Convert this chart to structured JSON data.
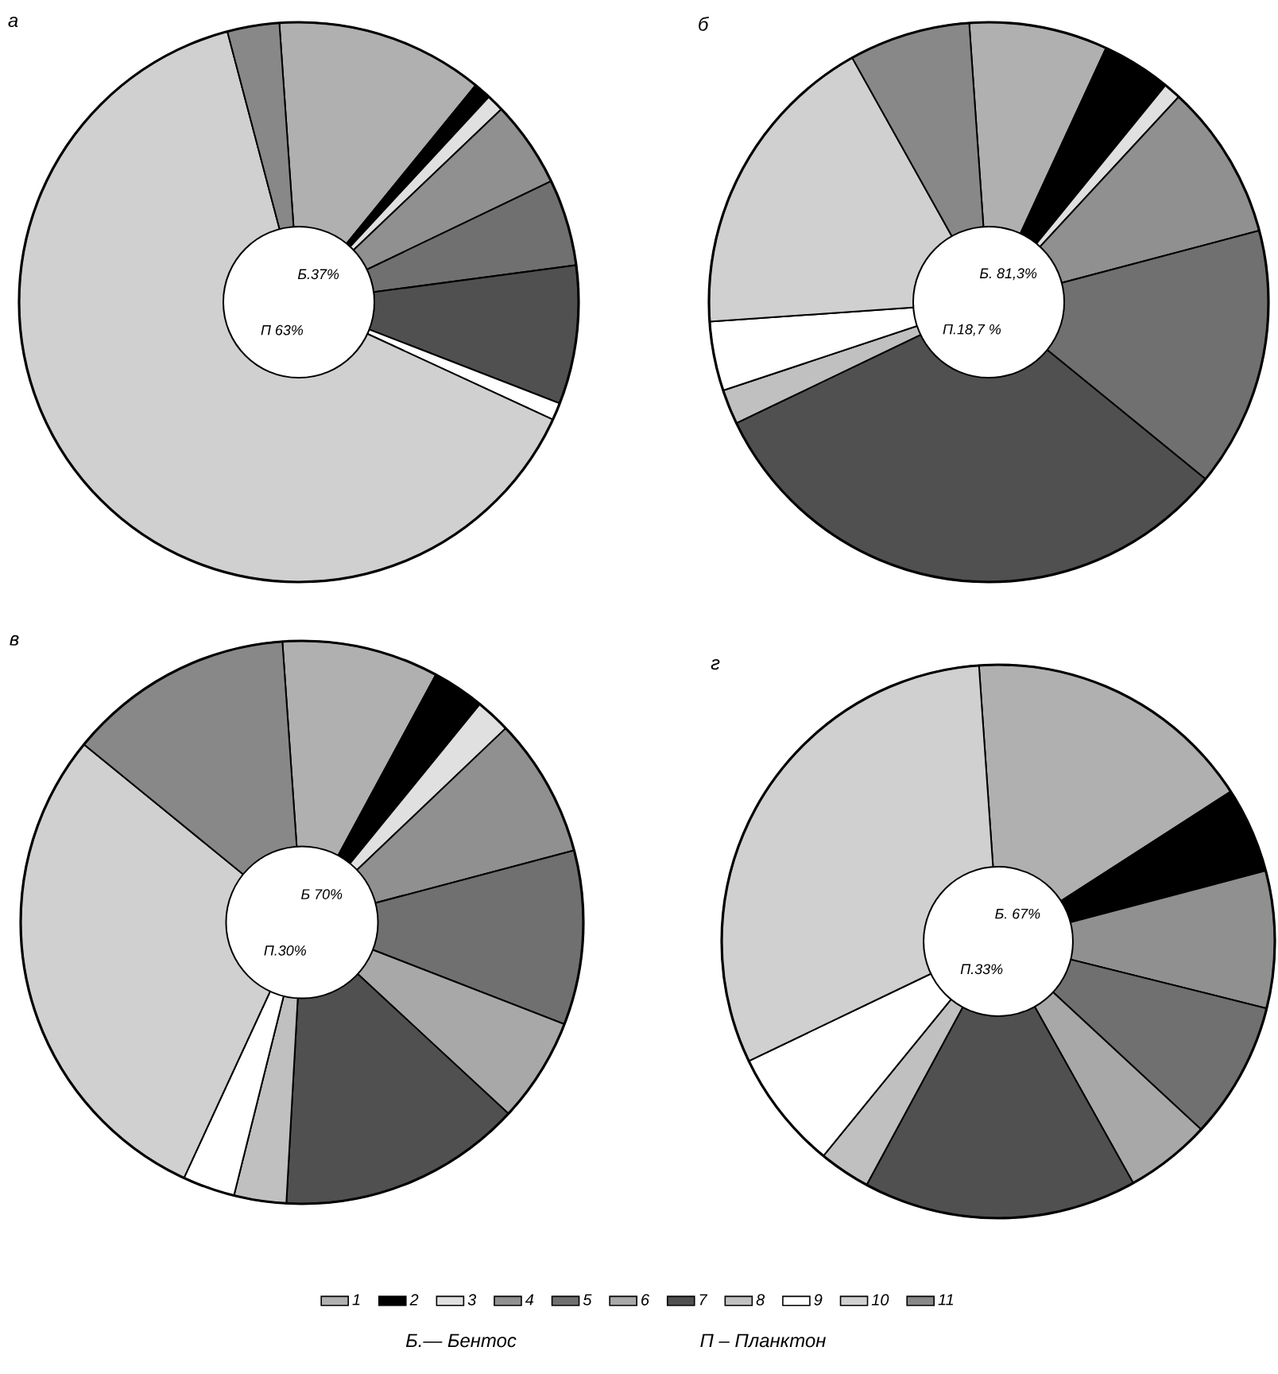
{
  "chart_data": [
    {
      "type": "donut",
      "title": "а",
      "categories": [
        "1",
        "2",
        "3",
        "4",
        "5",
        "6",
        "7",
        "8",
        "9",
        "10",
        "11"
      ],
      "values": [
        12,
        1,
        1,
        5,
        5,
        null,
        8,
        null,
        1,
        64,
        3
      ],
      "colors": [
        "#b0b0b0",
        "#000000",
        "#e0e0e0",
        "#909090",
        "#707070",
        "#a8a8a8",
        "#505050",
        "#c0c0c0",
        "#ffffff",
        "#d0d0d0",
        "#888888"
      ],
      "annotations": [
        "Б.37%",
        "П 63%",
        "Б.— Бентос",
        "П – Планктон"
      ],
      "legend": "bottom"
    },
    {
      "type": "donut",
      "title": "б",
      "categories": [
        null,
        null,
        null,
        null,
        null,
        null,
        null,
        null,
        null,
        null,
        null
      ],
      "values": [
        8,
        4,
        1,
        9,
        15,
        null,
        32,
        2,
        4,
        18,
        7
      ],
      "colors": [
        "#b0b0b0",
        "#000000",
        "#e0e0e0",
        "#909090",
        "#707070",
        "#a8a8a8",
        "#505050",
        "#c0c0c0",
        "#ffffff",
        "#d0d0d0",
        "#888888"
      ],
      "annotations": [
        "Б. 81,3%",
        "П.18,7 %"
      ]
    },
    {
      "type": "donut",
      "title": "в",
      "categories": [
        null,
        null,
        null,
        null,
        null,
        null,
        null,
        null,
        null,
        null,
        null
      ],
      "values": [
        9,
        3,
        2,
        8,
        10,
        6,
        14,
        3,
        3,
        29,
        13
      ],
      "colors": [
        "#b0b0b0",
        "#000000",
        "#e0e0e0",
        "#909090",
        "#707070",
        "#a8a8a8",
        "#505050",
        "#c0c0c0",
        "#ffffff",
        "#d0d0d0",
        "#888888"
      ],
      "annotations": [
        "Б 70%",
        "П.30%"
      ]
    },
    {
      "type": "donut",
      "title": "г",
      "categories": [
        null,
        null,
        null,
        null,
        null,
        null,
        null,
        null,
        null,
        null,
        null
      ],
      "values": [
        17,
        5,
        null,
        8,
        8,
        5,
        16,
        3,
        7,
        31,
        null
      ],
      "colors": [
        "#b0b0b0",
        "#000000",
        "#e0e0e0",
        "#909090",
        "#707070",
        "#a8a8a8",
        "#505050",
        "#c0c0c0",
        "#ffffff",
        "#d0d0d0",
        "#888888"
      ],
      "annotations": [
        "Б. 67%",
        "П.33%"
      ]
    }
  ]
}
